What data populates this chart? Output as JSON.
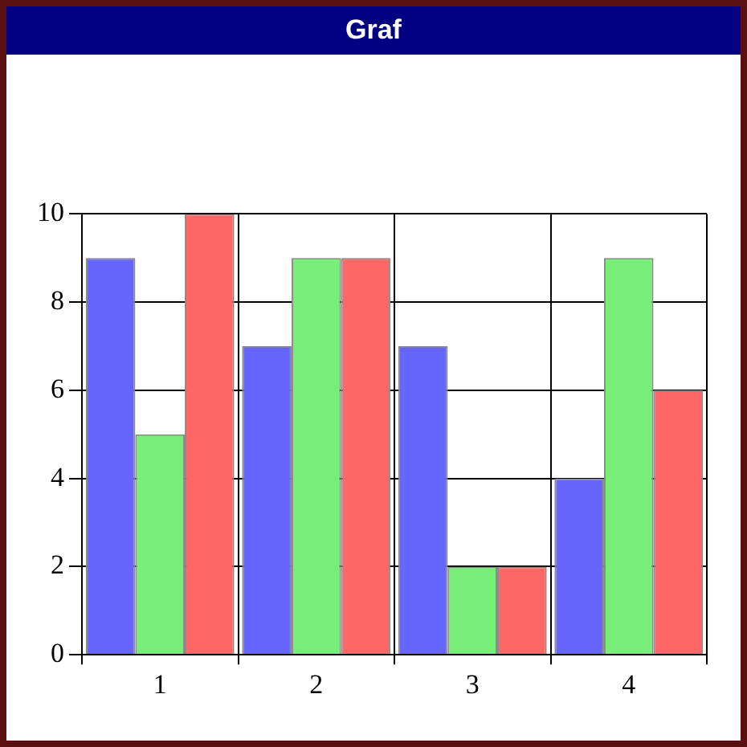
{
  "chart_data": {
    "type": "bar",
    "title": "Graf",
    "categories": [
      "1",
      "2",
      "3",
      "4"
    ],
    "series": [
      {
        "color": "#6666ff",
        "values": [
          9,
          7,
          7,
          4
        ]
      },
      {
        "color": "#77ee77",
        "values": [
          5,
          9,
          2,
          9
        ]
      },
      {
        "color": "#ff6666",
        "values": [
          10,
          9,
          2,
          6
        ]
      }
    ],
    "ylim": [
      0,
      10
    ],
    "yticks": [
      0,
      2,
      4,
      6,
      8,
      10
    ],
    "grid": true,
    "legend": false
  }
}
